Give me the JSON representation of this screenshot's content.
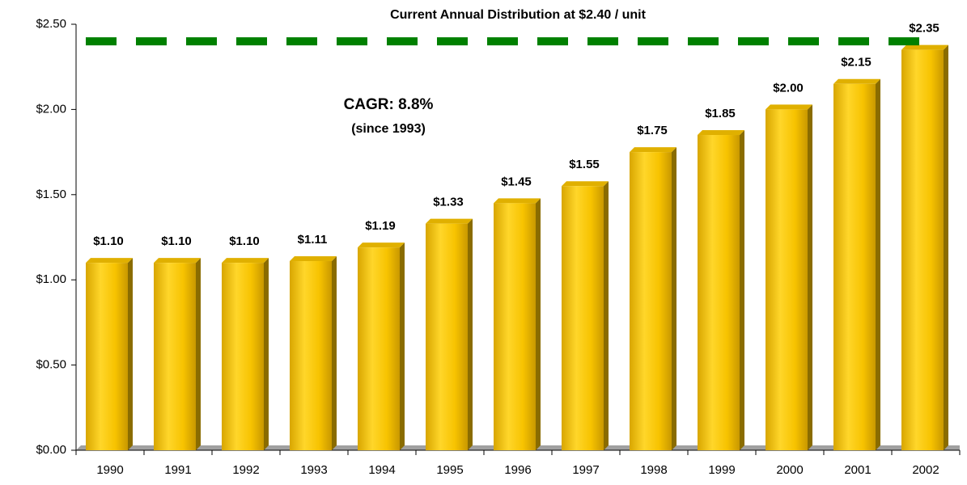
{
  "chart_data": {
    "type": "bar",
    "categories": [
      "1990",
      "1991",
      "1992",
      "1993",
      "1994",
      "1995",
      "1996",
      "1997",
      "1998",
      "1999",
      "2000",
      "2001",
      "2002"
    ],
    "values": [
      1.1,
      1.1,
      1.1,
      1.11,
      1.19,
      1.33,
      1.45,
      1.55,
      1.75,
      1.85,
      2.0,
      2.15,
      2.35
    ],
    "value_labels": [
      "$1.10",
      "$1.10",
      "$1.10",
      "$1.11",
      "$1.19",
      "$1.33",
      "$1.45",
      "$1.55",
      "$1.75",
      "$1.85",
      "$2.00",
      "$2.15",
      "$2.35"
    ],
    "color": "#f5c400",
    "ylim": [
      0,
      2.5
    ],
    "yticks": [
      {
        "value": 0,
        "label": "$0.00"
      },
      {
        "value": 0.5,
        "label": "$0.50"
      },
      {
        "value": 1,
        "label": "$1.00"
      },
      {
        "value": 1.5,
        "label": "$1.50"
      },
      {
        "value": 2,
        "label": "$2.00"
      },
      {
        "value": 2.5,
        "label": "$2.50"
      }
    ],
    "reference_line": {
      "value": 2.4,
      "label": "Current Annual Distribution at $2.40 / unit",
      "color": "#008000"
    },
    "annotations": [
      "CAGR: 8.8%",
      "(since 1993)"
    ]
  }
}
